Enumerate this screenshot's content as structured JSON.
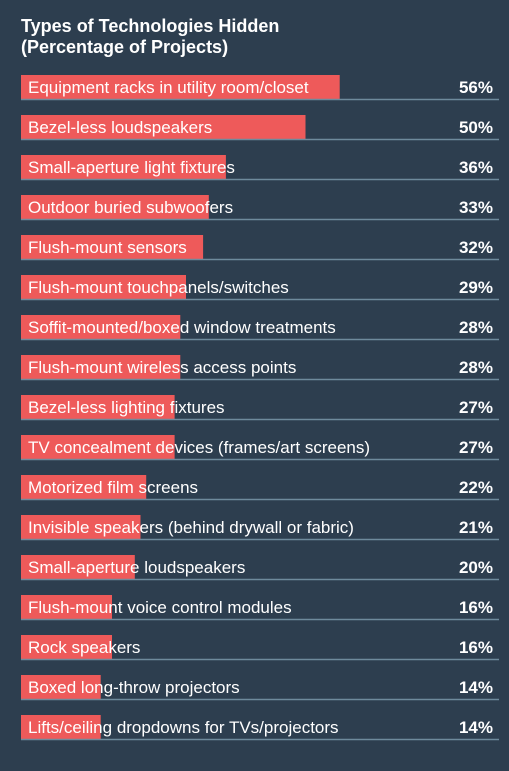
{
  "chart_data": {
    "type": "bar",
    "orientation": "horizontal",
    "title_lines": [
      "Types of Technologies Hidden",
      "(Percentage of Projects)"
    ],
    "categories": [
      "Equipment racks in utility room/closet",
      "Bezel-less loudspeakers",
      "Small-aperture light fixtures",
      "Outdoor buried subwoofers",
      "Flush-mount sensors",
      "Flush-mount touchpanels/switches",
      "Soffit-mounted/boxed window treatments",
      "Flush-mount wireless access points",
      "Bezel-less lighting fixtures",
      "TV concealment devices (frames/art screens)",
      "Motorized film screens",
      "Invisible speakers (behind drywall or fabric)",
      "Small-aperture loudspeakers",
      "Flush-mount voice control modules",
      "Rock speakers",
      "Boxed long-throw projectors",
      "Lifts/ceiling dropdowns for TVs/projectors"
    ],
    "values": [
      56,
      50,
      36,
      33,
      32,
      29,
      28,
      28,
      27,
      27,
      22,
      21,
      20,
      16,
      16,
      14,
      14
    ],
    "value_labels": [
      "56%",
      "50%",
      "36%",
      "33%",
      "32%",
      "29%",
      "28%",
      "28%",
      "27%",
      "27%",
      "22%",
      "21%",
      "20%",
      "16%",
      "16%",
      "14%",
      "14%"
    ],
    "unit": "%",
    "xlim": [
      0,
      84
    ],
    "grid": false,
    "legend": "none",
    "colors": {
      "background": "#2d3e4f",
      "bar": "#ee5a5a",
      "separator": "#6e8a9c",
      "text": "#ffffff"
    }
  }
}
